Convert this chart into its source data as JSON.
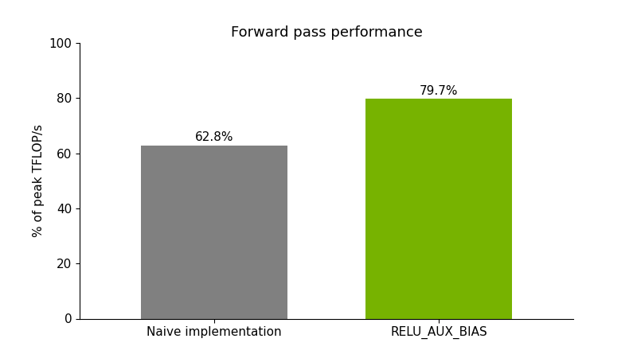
{
  "categories": [
    "Naive implementation",
    "RELU_AUX_BIAS"
  ],
  "values": [
    62.8,
    79.7
  ],
  "bar_colors": [
    "#808080",
    "#77b300"
  ],
  "labels": [
    "62.8%",
    "79.7%"
  ],
  "title": "Forward pass performance",
  "ylabel": "% of peak TFLOP/s",
  "ylim": [
    0,
    100
  ],
  "yticks": [
    0,
    20,
    40,
    60,
    80,
    100
  ],
  "title_fontsize": 13,
  "label_fontsize": 11,
  "tick_fontsize": 11,
  "bar_width": 0.65,
  "background_color": "#ffffff",
  "figsize": [
    8.0,
    4.5
  ],
  "dpi": 100
}
